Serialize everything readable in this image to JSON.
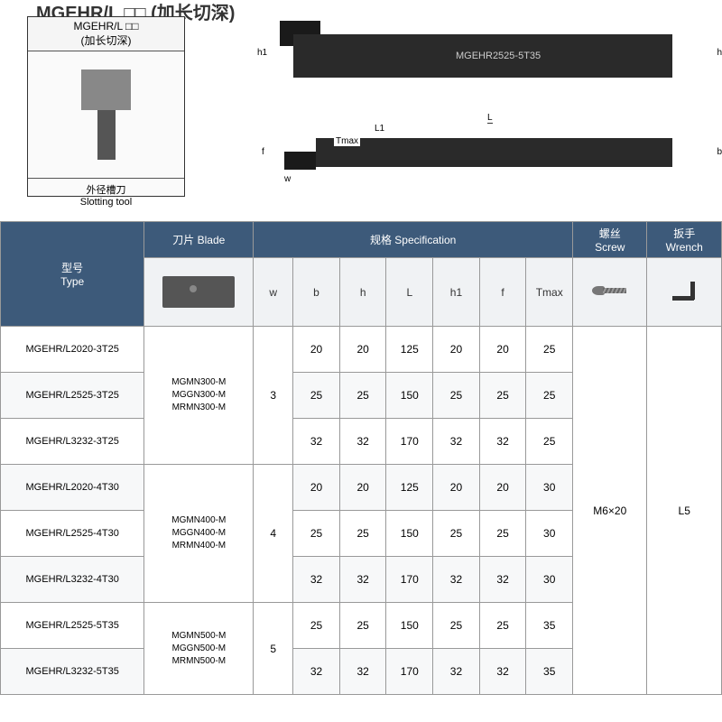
{
  "title": "MGEHR/L □□ (加长切深)",
  "diagram": {
    "box_header": "MGEHR/L □□\n(加长切深)",
    "box_footer_cn": "外径槽刀",
    "box_footer_en": "Slotting tool",
    "tool_label": "MGEHR2525-5T35",
    "dim_labels": {
      "h1": "h1",
      "h": "h",
      "L": "L",
      "L1": "L1",
      "Tmax": "Tmax",
      "f": "f",
      "w": "w",
      "b": "b"
    }
  },
  "table": {
    "headers": {
      "type_cn": "型号",
      "type_en": "Type",
      "blade_cn": "刀片",
      "blade_en": "Blade",
      "spec_cn": "规格",
      "spec_en": "Specification",
      "screw_cn": "螺丝",
      "screw_en": "Screw",
      "wrench_cn": "扳手",
      "wrench_en": "Wrench"
    },
    "spec_cols": [
      "w",
      "b",
      "h",
      "L",
      "h1",
      "f",
      "Tmax"
    ],
    "blade_groups": [
      {
        "blades": "MGMN300-M\nMGGN300-M\nMRMN300-M",
        "w": "3",
        "rows": [
          {
            "type": "MGEHR/L2020-3T25",
            "b": "20",
            "h": "20",
            "L": "125",
            "h1": "20",
            "f": "20",
            "Tmax": "25"
          },
          {
            "type": "MGEHR/L2525-3T25",
            "b": "25",
            "h": "25",
            "L": "150",
            "h1": "25",
            "f": "25",
            "Tmax": "25"
          },
          {
            "type": "MGEHR/L3232-3T25",
            "b": "32",
            "h": "32",
            "L": "170",
            "h1": "32",
            "f": "32",
            "Tmax": "25"
          }
        ]
      },
      {
        "blades": "MGMN400-M\nMGGN400-M\nMRMN400-M",
        "w": "4",
        "rows": [
          {
            "type": "MGEHR/L2020-4T30",
            "b": "20",
            "h": "20",
            "L": "125",
            "h1": "20",
            "f": "20",
            "Tmax": "30"
          },
          {
            "type": "MGEHR/L2525-4T30",
            "b": "25",
            "h": "25",
            "L": "150",
            "h1": "25",
            "f": "25",
            "Tmax": "30"
          },
          {
            "type": "MGEHR/L3232-4T30",
            "b": "32",
            "h": "32",
            "L": "170",
            "h1": "32",
            "f": "32",
            "Tmax": "30"
          }
        ]
      },
      {
        "blades": "MGMN500-M\nMGGN500-M\nMRMN500-M",
        "w": "5",
        "rows": [
          {
            "type": "MGEHR/L2525-5T35",
            "b": "25",
            "h": "25",
            "L": "150",
            "h1": "25",
            "f": "25",
            "Tmax": "35"
          },
          {
            "type": "MGEHR/L3232-5T35",
            "b": "32",
            "h": "32",
            "L": "170",
            "h1": "32",
            "f": "32",
            "Tmax": "35"
          }
        ]
      }
    ],
    "screw_val": "M6×20",
    "wrench_val": "L5",
    "colors": {
      "header_bg": "#3d5a7a",
      "header_fg": "#ffffff",
      "subheader_bg": "#f0f2f4",
      "border": "#999999",
      "row_alt": "#f7f8f9"
    }
  }
}
